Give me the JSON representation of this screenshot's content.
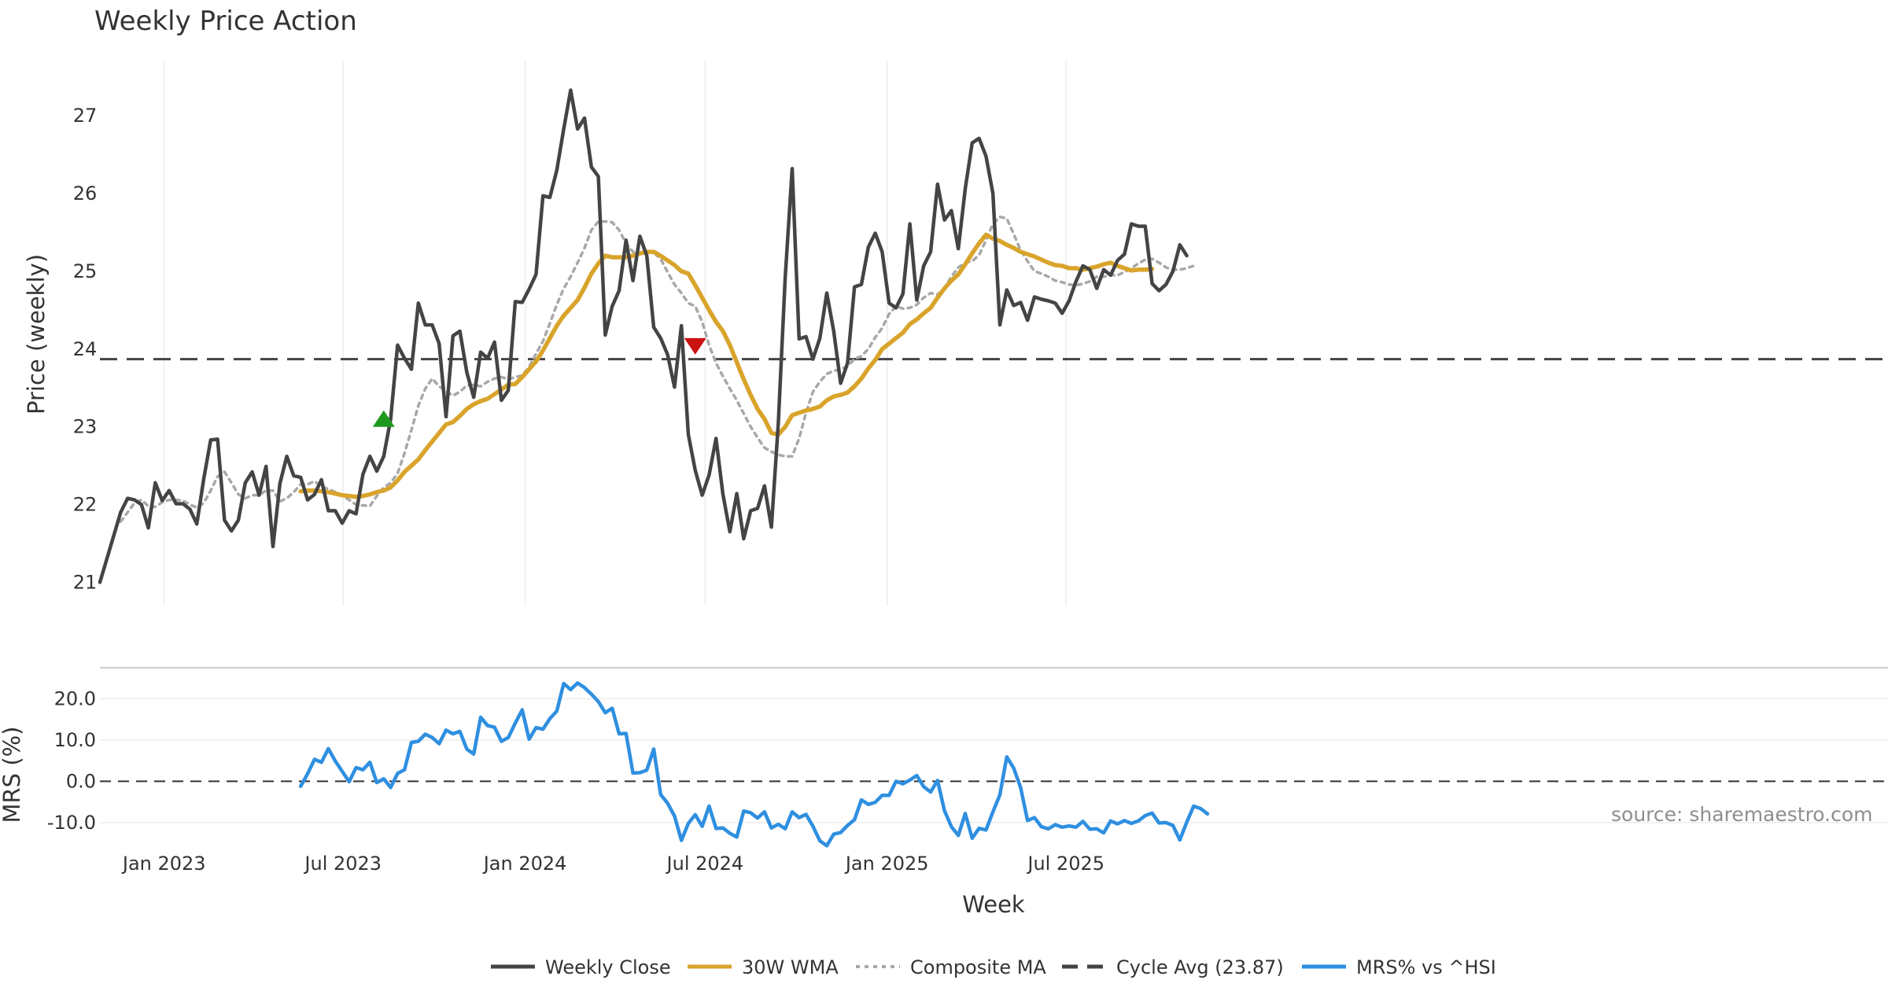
{
  "chart_data": [
    {
      "type": "line",
      "title": "Weekly Price Action",
      "ylabel": "Price (weekly)",
      "xlabel": "Week",
      "ylim": [
        20.7,
        27.7
      ],
      "yticks": [
        21,
        22,
        23,
        24,
        25,
        26,
        27
      ],
      "cycle_avg": 23.87,
      "x_start": "2022-10-28",
      "x_step_days": 7,
      "series": [
        {
          "name": "Weekly Close",
          "color": "#444444",
          "start_index": 0,
          "values": [
            21.0,
            21.3,
            21.6,
            21.9,
            22.08,
            22.06,
            22.0,
            21.7,
            22.28,
            22.05,
            22.18,
            22.01,
            22.01,
            21.94,
            21.75,
            22.33,
            22.83,
            22.84,
            21.8,
            21.66,
            21.8,
            22.28,
            22.42,
            22.12,
            22.49,
            21.46,
            22.27,
            22.62,
            22.37,
            22.35,
            22.06,
            22.13,
            22.32,
            21.92,
            21.92,
            21.76,
            21.92,
            21.88,
            22.39,
            22.62,
            22.43,
            22.62,
            23.1,
            24.05,
            23.88,
            23.74,
            24.59,
            24.31,
            24.31,
            24.07,
            23.13,
            24.17,
            24.23,
            23.7,
            23.38,
            23.96,
            23.88,
            24.09,
            23.34,
            23.47,
            24.61,
            24.6,
            24.77,
            24.96,
            25.97,
            25.95,
            26.3,
            26.83,
            27.33,
            26.83,
            26.97,
            26.34,
            26.22,
            24.18,
            24.55,
            24.75,
            25.4,
            24.88,
            25.45,
            25.2,
            24.28,
            24.14,
            23.93,
            23.51,
            24.3,
            22.9,
            22.44,
            22.12,
            22.38,
            22.85,
            22.13,
            21.65,
            22.14,
            21.56,
            21.92,
            21.95,
            22.24,
            21.71,
            23.05,
            24.93,
            26.32,
            24.13,
            24.16,
            23.87,
            24.14,
            24.72,
            24.23,
            23.56,
            23.82,
            24.8,
            24.83,
            25.31,
            25.49,
            25.25,
            24.59,
            24.53,
            24.71,
            25.61,
            24.63,
            25.07,
            25.25,
            26.12,
            25.66,
            25.78,
            25.29,
            26.06,
            26.65,
            26.71,
            26.48,
            26.0,
            24.31,
            24.76,
            24.56,
            24.6,
            24.37,
            24.67,
            24.64,
            24.62,
            24.59,
            24.46,
            24.62,
            24.87,
            25.07,
            25.02,
            24.78,
            25.02,
            24.95,
            25.14,
            25.22,
            25.61,
            25.58,
            25.58,
            24.84,
            24.75,
            24.83,
            25.0,
            25.34,
            25.2
          ]
        },
        {
          "name": "30W WMA",
          "color": "#d9a42b",
          "start_index": 29,
          "values": [
            22.17,
            22.18,
            22.18,
            22.17,
            22.16,
            22.14,
            22.12,
            22.11,
            22.1,
            22.11,
            22.13,
            22.16,
            22.18,
            22.22,
            22.31,
            22.42,
            22.5,
            22.58,
            22.7,
            22.81,
            22.92,
            23.03,
            23.06,
            23.14,
            23.23,
            23.29,
            23.33,
            23.36,
            23.42,
            23.48,
            23.54,
            23.55,
            23.64,
            23.74,
            23.84,
            23.98,
            24.14,
            24.3,
            24.43,
            24.53,
            24.63,
            24.79,
            24.97,
            25.1,
            25.2,
            25.18,
            25.18,
            25.18,
            25.2,
            25.23,
            25.25,
            25.25,
            25.2,
            25.14,
            25.08,
            25.0,
            24.97,
            24.82,
            24.66,
            24.5,
            24.35,
            24.23,
            24.05,
            23.83,
            23.61,
            23.41,
            23.23,
            23.1,
            22.92,
            22.9,
            23.0,
            23.15,
            23.18,
            23.21,
            23.23,
            23.26,
            23.34,
            23.39,
            23.41,
            23.44,
            23.52,
            23.62,
            23.75,
            23.86,
            24.0,
            24.07,
            24.14,
            24.21,
            24.32,
            24.38,
            24.46,
            24.53,
            24.66,
            24.78,
            24.88,
            24.96,
            25.09,
            25.23,
            25.36,
            25.47,
            25.42,
            25.39,
            25.34,
            25.3,
            25.25,
            25.22,
            25.19,
            25.15,
            25.11,
            25.08,
            25.07,
            25.04,
            25.04,
            25.02,
            25.04,
            25.06,
            25.09,
            25.11,
            25.07,
            25.04,
            25.01,
            25.02,
            25.02,
            25.03
          ]
        },
        {
          "name": "Composite MA",
          "color": "#a8a8a8",
          "start_index": 3,
          "values": [
            21.78,
            21.9,
            22.02,
            22.06,
            21.98,
            21.97,
            22.03,
            22.06,
            22.06,
            22.05,
            22.0,
            21.96,
            22.02,
            22.18,
            22.36,
            22.42,
            22.28,
            22.13,
            22.08,
            22.12,
            22.12,
            22.18,
            22.18,
            22.04,
            22.08,
            22.16,
            22.26,
            22.26,
            22.3,
            22.23,
            22.2,
            22.16,
            22.12,
            22.06,
            22.0,
            21.99,
            21.98,
            22.11,
            22.22,
            22.28,
            22.4,
            22.66,
            22.96,
            23.27,
            23.49,
            23.62,
            23.52,
            23.46,
            23.4,
            23.45,
            23.53,
            23.54,
            23.52,
            23.58,
            23.62,
            23.64,
            23.61,
            23.64,
            23.66,
            23.77,
            23.94,
            24.1,
            24.33,
            24.57,
            24.78,
            24.93,
            25.11,
            25.3,
            25.53,
            25.64,
            25.64,
            25.63,
            25.53,
            25.36,
            25.25,
            25.23,
            25.24,
            25.24,
            25.16,
            24.99,
            24.83,
            24.72,
            24.59,
            24.55,
            24.35,
            24.05,
            23.82,
            23.65,
            23.49,
            23.34,
            23.17,
            23.0,
            22.86,
            22.73,
            22.68,
            22.64,
            22.62,
            22.62,
            22.85,
            23.18,
            23.45,
            23.58,
            23.68,
            23.72,
            23.74,
            23.78,
            23.87,
            23.91,
            24.0,
            24.15,
            24.27,
            24.45,
            24.55,
            24.52,
            24.53,
            24.57,
            24.66,
            24.72,
            24.7,
            24.78,
            24.93,
            25.05,
            25.11,
            25.13,
            25.21,
            25.4,
            25.61,
            25.7,
            25.68,
            25.48,
            25.27,
            25.13,
            25.0,
            24.97,
            24.93,
            24.88,
            24.86,
            24.83,
            24.82,
            24.84,
            24.87,
            24.93,
            24.93,
            24.95,
            24.95,
            24.99,
            25.04,
            25.1,
            25.15,
            25.16,
            25.11,
            25.05,
            25.02,
            25.02,
            25.04,
            25.07
          ]
        },
        {
          "name": "Cycle Avg (23.87)",
          "color": "#444444",
          "value": 23.87
        }
      ],
      "markers": [
        {
          "type": "buy",
          "shape": "triangle-up",
          "color": "#1e9a1e",
          "week_index": 41,
          "value": 23.1
        },
        {
          "type": "sell",
          "shape": "triangle-down",
          "color": "#cc1111",
          "week_index": 86,
          "value": 24.04
        }
      ]
    },
    {
      "type": "line",
      "ylabel": "MRS (%)",
      "xlabel": "Week",
      "ylim": [
        -16.5,
        27.5
      ],
      "yticks": [
        "20.0",
        "10.0",
        "0.0",
        "-10.0"
      ],
      "ytick_values": [
        20,
        10,
        0,
        -10
      ],
      "zero_line": 0,
      "x_start": "2022-10-28",
      "x_step_days": 7,
      "xtick_labels": [
        "Jan 2023",
        "Jul 2023",
        "Jan 2024",
        "Jul 2024",
        "Jan 2025",
        "Jul 2025"
      ],
      "xtick_dates": [
        "2023-01-01",
        "2023-07-01",
        "2024-01-01",
        "2024-07-01",
        "2025-01-01",
        "2025-07-01"
      ],
      "series": [
        {
          "name": "MRS% vs ^HSI",
          "color": "#2f8fe0",
          "start_index": 29,
          "values": [
            -1.2,
            1.8,
            5.3,
            4.6,
            7.9,
            4.9,
            2.4,
            -0.1,
            3.3,
            2.8,
            4.6,
            -0.3,
            0.6,
            -1.5,
            1.9,
            2.8,
            9.4,
            9.7,
            11.4,
            10.6,
            9.1,
            12.4,
            11.5,
            12.1,
            7.8,
            6.6,
            15.5,
            13.5,
            13.1,
            9.7,
            10.6,
            14.1,
            17.3,
            10.2,
            13.0,
            12.6,
            15.2,
            17.0,
            23.7,
            22.2,
            23.8,
            22.7,
            21.1,
            19.3,
            16.6,
            17.7,
            11.5,
            11.6,
            2.0,
            2.1,
            2.7,
            7.8,
            -3.2,
            -5.3,
            -8.4,
            -14.3,
            -10.2,
            -8.1,
            -10.9,
            -6.0,
            -11.4,
            -11.3,
            -12.6,
            -13.5,
            -7.2,
            -7.6,
            -8.9,
            -7.4,
            -11.3,
            -10.4,
            -11.5,
            -7.4,
            -8.8,
            -8.0,
            -10.9,
            -14.4,
            -15.6,
            -12.8,
            -12.4,
            -10.7,
            -9.3,
            -4.5,
            -5.6,
            -5.1,
            -3.4,
            -3.4,
            0.0,
            -0.6,
            0.3,
            1.4,
            -1.3,
            -2.6,
            0.2,
            -7.1,
            -11.0,
            -13.1,
            -7.8,
            -13.8,
            -11.4,
            -11.8,
            -7.4,
            -3.3,
            5.9,
            3.2,
            -1.5,
            -9.5,
            -8.8,
            -11.0,
            -11.5,
            -10.5,
            -11.1,
            -10.8,
            -11.1,
            -9.7,
            -11.6,
            -11.5,
            -12.5,
            -9.6,
            -10.3,
            -9.5,
            -10.2,
            -9.6,
            -8.3,
            -7.7,
            -10.1,
            -10.0,
            -10.7,
            -14.2,
            -9.9,
            -6.0,
            -6.6,
            -7.9
          ]
        }
      ]
    }
  ],
  "legend": [
    {
      "label": "Weekly Close",
      "color": "#444444",
      "style": "solid"
    },
    {
      "label": "30W WMA",
      "color": "#d9a42b",
      "style": "solid"
    },
    {
      "label": "Composite MA",
      "color": "#a8a8a8",
      "style": "dotted"
    },
    {
      "label": "Cycle Avg (23.87)",
      "color": "#444444",
      "style": "dashed"
    },
    {
      "label": "MRS% vs ^HSI",
      "color": "#2f8fe0",
      "style": "solid"
    }
  ],
  "source": "source: sharemaestro.com"
}
